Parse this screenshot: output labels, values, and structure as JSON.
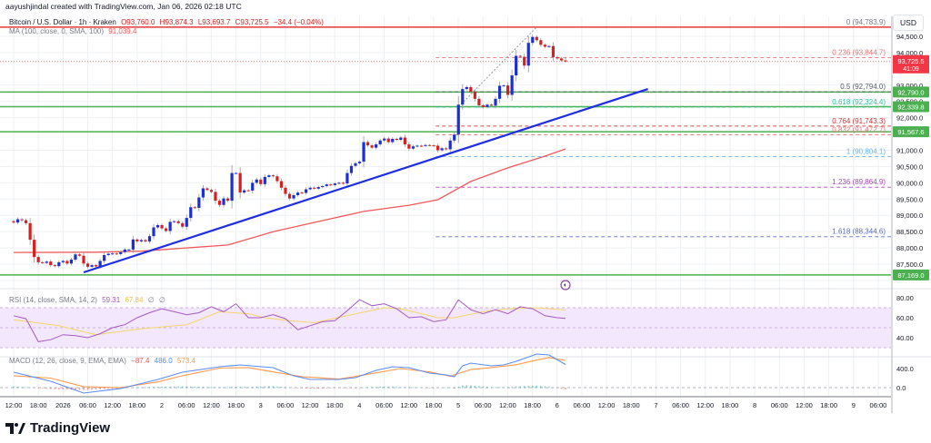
{
  "header": {
    "attribution": "aayushjindal created with TradingView.com, Jan 06, 2026 02:18 UTC"
  },
  "legend": {
    "symbol": "Bitcoin / U.S. Dollar · 1h · Kraken",
    "open": "O93,760.0",
    "high": "H93,874.3",
    "low": "L93,693.7",
    "close": "C93,725.5",
    "change": "−34.4 (−0.04%)",
    "ma_label": "MA (100, close, 0, SMA, 100)",
    "ma_value": "91,039.4"
  },
  "currency_button": "USD",
  "rsi_legend": {
    "label": "RSI (14, close, SMA, 14, 2)",
    "rsi": "59.31",
    "rsi_ma": "67.84",
    "extra1": "∅",
    "extra2": "∅"
  },
  "macd_legend": {
    "label": "MACD (12, 26, close, 9, EMA, EMA)",
    "hist": "−87.4",
    "macd": "486.0",
    "signal": "573.4"
  },
  "logo_text": "TradingView",
  "colors": {
    "up": "#1b2fd3",
    "down": "#d81e1e",
    "ma": "#f0585c",
    "trendline": "#1f2ee0",
    "support": "#4caf50",
    "resistance": "#e53935",
    "rsi": "#a45ac2",
    "rsi_ma": "#f5d66b",
    "macd": "#5b8cf5",
    "signal": "#ff9a4d",
    "hist_up": "#26a69a",
    "hist_down": "#ef5350"
  },
  "chart_data": [
    {
      "type": "candlestick",
      "title": "Bitcoin / U.S. Dollar · 1h · Kraken",
      "interval": "1h",
      "first_bar": "Dec 31 12:00",
      "last_bar": "Jan 6 02:00",
      "close": [
        88780,
        88880,
        88850,
        88760,
        88250,
        87720,
        87560,
        87540,
        87580,
        87470,
        87440,
        87560,
        87600,
        87520,
        87640,
        87800,
        87760,
        87520,
        87420,
        87470,
        87430,
        87600,
        87780,
        87820,
        87830,
        87810,
        87870,
        87950,
        87950,
        88260,
        88200,
        88240,
        88200,
        88360,
        88630,
        88700,
        88600,
        88520,
        88800,
        88820,
        88760,
        88650,
        88920,
        89250,
        89230,
        89550,
        89830,
        89780,
        89720,
        89450,
        89320,
        89520,
        89450,
        90300,
        90300,
        89700,
        89770,
        89760,
        90000,
        90100,
        89960,
        90180,
        90230,
        90200,
        90050,
        89850,
        89660,
        89520,
        89620,
        89700,
        89690,
        89800,
        89850,
        89820,
        89870,
        89900,
        89950,
        89930,
        89980,
        90000,
        89980,
        90300,
        90520,
        90600,
        90650,
        91250,
        91150,
        91080,
        91180,
        91300,
        91360,
        91250,
        91350,
        91320,
        91390,
        91180,
        91050,
        91120,
        91140,
        91130,
        91160,
        91150,
        91140,
        91000,
        91060,
        91030,
        91300,
        91480,
        92400,
        92880,
        92940,
        92800,
        92580,
        92380,
        92330,
        92400,
        92370,
        92580,
        92980,
        92990,
        92700,
        93300,
        93900,
        93870,
        93600,
        94300,
        94480,
        94380,
        94240,
        94180,
        94200,
        93860,
        93820,
        93760,
        93725.5
      ],
      "last_open": 93760.0,
      "last_high": 93874.3,
      "last_low": 93693.7,
      "current_price": "93,725.5",
      "countdown": "41:09",
      "ma100": {
        "name": "MA (100, close, 0, SMA, 100)",
        "points": [
          [
            0,
            87860
          ],
          [
            20,
            87870
          ],
          [
            31,
            87900
          ],
          [
            52,
            88090
          ],
          [
            63,
            88500
          ],
          [
            74,
            88810
          ],
          [
            85,
            89120
          ],
          [
            96,
            89310
          ],
          [
            103,
            89480
          ],
          [
            111,
            90040
          ],
          [
            120,
            90460
          ],
          [
            129,
            90820
          ],
          [
            134,
            91039.4
          ]
        ]
      },
      "ylim": [
        87000,
        94800
      ],
      "y_ticks": [
        "94,500.0",
        "94,000.0",
        "93,000.0",
        "92,500.0",
        "92,000.0",
        "91,000.0",
        "90,500.0",
        "90,000.0",
        "89,500.0",
        "89,000.0",
        "88,500.0",
        "88,000.0",
        "87,500.0"
      ],
      "y_tick_values": [
        94500,
        94000,
        93000,
        92500,
        92000,
        91000,
        90500,
        90000,
        89500,
        89000,
        88500,
        88000,
        87500
      ],
      "x_ticks": [
        "12:00",
        "18:00",
        "2026",
        "06:00",
        "12:00",
        "18:00",
        "2",
        "06:00",
        "12:00",
        "18:00",
        "3",
        "06:00",
        "12:00",
        "18:00",
        "4",
        "06:00",
        "12:00",
        "18:00",
        "5",
        "06:00",
        "12:00",
        "18:00",
        "6",
        "06:00",
        "12:00",
        "18:00",
        "7",
        "06:00",
        "12:00",
        "18:00",
        "8",
        "06:00",
        "12:00",
        "18:00",
        "9",
        "06:00"
      ],
      "horizontal_lines": [
        {
          "price": 94783.9,
          "color": "#e53935",
          "label": ""
        },
        {
          "price": 92790.0,
          "color": "#4caf50",
          "label": "92,790.0"
        },
        {
          "price": 92339.8,
          "color": "#4caf50",
          "label": "92,339.8"
        },
        {
          "price": 91567.6,
          "color": "#4caf50",
          "label": "91,567.6"
        },
        {
          "price": 87169.0,
          "color": "#4caf50",
          "label": "87,169.0"
        }
      ],
      "trendline": {
        "from": {
          "bar": 17,
          "price": 87250
        },
        "to": {
          "bar": 154,
          "price": 92880
        }
      },
      "fib_retracement": {
        "from": {
          "bar": 108,
          "price": 90804.1
        },
        "to": {
          "bar": 127,
          "price": 94783.9
        },
        "levels": [
          {
            "label": "0 (94,783.9)",
            "price": 94783.9,
            "color": "#787b86"
          },
          {
            "label": "0.236 (93,844.7)",
            "price": 93844.7,
            "color": "#e57373"
          },
          {
            "label": "0.5 (92,794.0)",
            "price": 92794.0,
            "color": "#5d606b"
          },
          {
            "label": "0.618 (92,324.4)",
            "price": 92324.4,
            "color": "#2ec4a0"
          },
          {
            "label": "0.764 (91,743.3)",
            "price": 91743.3,
            "color": "#d32f2f"
          },
          {
            "label": "0.832 (91,472.7)",
            "price": 91472.7,
            "color": "#e57373"
          },
          {
            "label": "1 (90,804.1)",
            "price": 90804.1,
            "color": "#64b5f6"
          },
          {
            "label": "1.236 (89,864.9)",
            "price": 89864.9,
            "color": "#ab47bc"
          },
          {
            "label": "1.618 (88,344.6)",
            "price": 88344.6,
            "color": "#5c6bc0"
          }
        ]
      }
    },
    {
      "type": "line",
      "title": "RSI (14, close, SMA, 14, 2)",
      "ylim": [
        20,
        90
      ],
      "y_ticks": [
        "80.00",
        "60.00",
        "40.00"
      ],
      "y_tick_values": [
        80,
        60,
        40
      ],
      "band": [
        30,
        70
      ],
      "series": [
        {
          "name": "RSI",
          "points": [
            [
              0,
              62
            ],
            [
              3,
              59
            ],
            [
              6,
              36
            ],
            [
              9,
              38
            ],
            [
              12,
              43
            ],
            [
              15,
              42
            ],
            [
              18,
              40
            ],
            [
              21,
              44
            ],
            [
              24,
              50
            ],
            [
              27,
              53
            ],
            [
              30,
              60
            ],
            [
              33,
              65
            ],
            [
              36,
              69
            ],
            [
              39,
              66
            ],
            [
              42,
              63
            ],
            [
              45,
              65
            ],
            [
              48,
              71
            ],
            [
              51,
              66
            ],
            [
              54,
              74
            ],
            [
              57,
              60
            ],
            [
              60,
              60
            ],
            [
              63,
              63
            ],
            [
              66,
              59
            ],
            [
              69,
              48
            ],
            [
              72,
              52
            ],
            [
              75,
              56
            ],
            [
              78,
              57
            ],
            [
              81,
              67
            ],
            [
              84,
              78
            ],
            [
              87,
              72
            ],
            [
              90,
              74
            ],
            [
              93,
              69
            ],
            [
              96,
              60
            ],
            [
              99,
              61
            ],
            [
              102,
              56
            ],
            [
              105,
              58
            ],
            [
              108,
              78
            ],
            [
              111,
              68
            ],
            [
              114,
              64
            ],
            [
              117,
              68
            ],
            [
              120,
              64
            ],
            [
              123,
              71
            ],
            [
              126,
              69
            ],
            [
              129,
              62
            ],
            [
              132,
              60
            ],
            [
              134,
              59.31
            ]
          ]
        },
        {
          "name": "RSI MA",
          "points": [
            [
              0,
              58
            ],
            [
              11,
              52
            ],
            [
              20,
              43
            ],
            [
              31,
              49
            ],
            [
              42,
              53
            ],
            [
              50,
              66
            ],
            [
              57,
              64
            ],
            [
              61,
              60
            ],
            [
              67,
              57
            ],
            [
              73,
              55
            ],
            [
              81,
              62
            ],
            [
              90,
              70
            ],
            [
              94,
              69
            ],
            [
              103,
              60
            ],
            [
              107,
              60
            ],
            [
              114,
              66
            ],
            [
              120,
              69
            ],
            [
              127,
              70
            ],
            [
              134,
              67.84
            ]
          ]
        }
      ]
    },
    {
      "type": "line",
      "title": "MACD (12, 26, close, 9, EMA, EMA)",
      "y_ticks": [
        "400.0",
        "0.0"
      ],
      "y_tick_values": [
        400,
        0
      ],
      "series": [
        {
          "name": "MACD",
          "points": [
            [
              0,
              324
            ],
            [
              9,
              133
            ],
            [
              17,
              -114
            ],
            [
              26,
              -19
            ],
            [
              35,
              171
            ],
            [
              41,
              324
            ],
            [
              50,
              438
            ],
            [
              55,
              476
            ],
            [
              63,
              419
            ],
            [
              68,
              248
            ],
            [
              72,
              171
            ],
            [
              79,
              171
            ],
            [
              83,
              210
            ],
            [
              88,
              362
            ],
            [
              92,
              438
            ],
            [
              96,
              419
            ],
            [
              101,
              305
            ],
            [
              105,
              267
            ],
            [
              107,
              229
            ],
            [
              109,
              457
            ],
            [
              111,
              514
            ],
            [
              116,
              457
            ],
            [
              119,
              476
            ],
            [
              122,
              552
            ],
            [
              127,
              705
            ],
            [
              130,
              686
            ],
            [
              134,
              486.0
            ]
          ]
        },
        {
          "name": "Signal",
          "points": [
            [
              0,
              250
            ],
            [
              9,
              200
            ],
            [
              17,
              20
            ],
            [
              26,
              0
            ],
            [
              35,
              120
            ],
            [
              41,
              250
            ],
            [
              50,
              410
            ],
            [
              57,
              420
            ],
            [
              63,
              330
            ],
            [
              70,
              230
            ],
            [
              79,
              180
            ],
            [
              86,
              280
            ],
            [
              94,
              400
            ],
            [
              101,
              330
            ],
            [
              106,
              240
            ],
            [
              111,
              380
            ],
            [
              116,
              420
            ],
            [
              122,
              480
            ],
            [
              127,
              580
            ],
            [
              130,
              630
            ],
            [
              134,
              573.4
            ]
          ]
        }
      ]
    }
  ]
}
